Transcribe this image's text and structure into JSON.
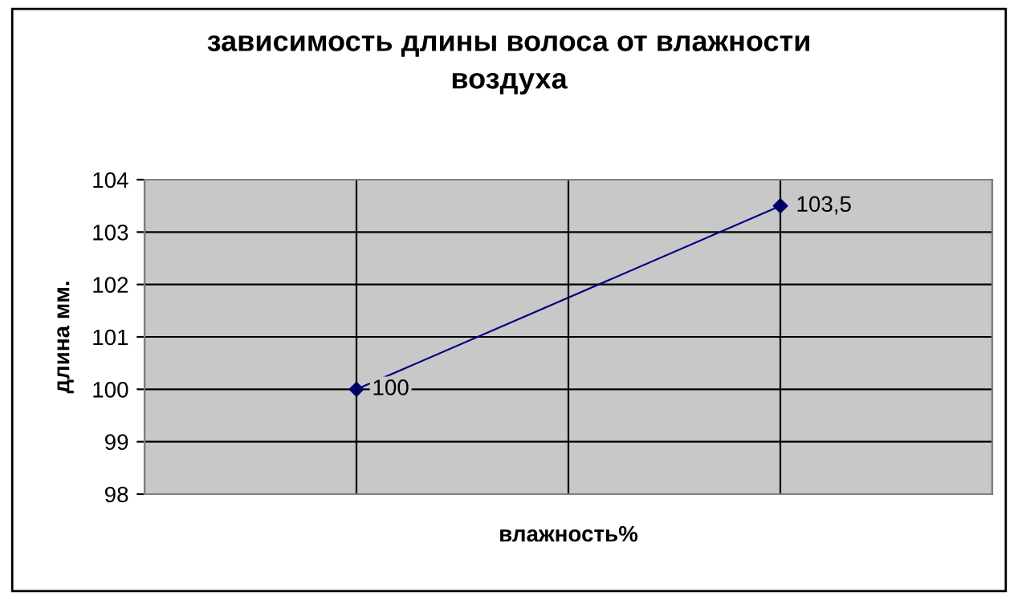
{
  "chart_data": {
    "type": "line",
    "title": "зависимость длины волоса от влажности\nвоздуха",
    "xlabel": "влажность%",
    "ylabel": "длина мм.",
    "categories": [
      null,
      null
    ],
    "series": [
      {
        "color": "#000080",
        "values": [
          100,
          103.5
        ],
        "value_labels": [
          "100",
          "103,5"
        ]
      }
    ],
    "ylim": [
      98,
      104
    ],
    "yticks": [
      98,
      99,
      100,
      101,
      102,
      103,
      104
    ],
    "grid": true,
    "marker": "diamond",
    "line_style": "solid"
  }
}
